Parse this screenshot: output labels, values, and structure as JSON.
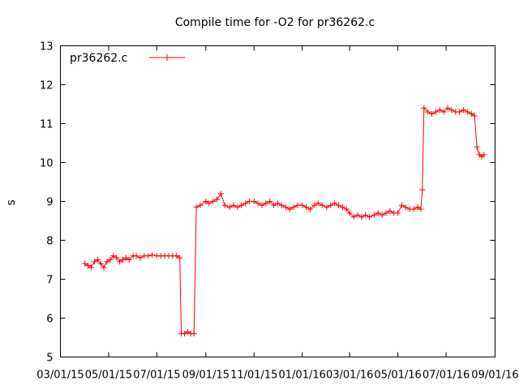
{
  "chart_data": {
    "type": "line",
    "title": "Compile time for -O2 for pr36262.c",
    "xlabel": "",
    "ylabel": "s",
    "ylim": [
      5,
      13
    ],
    "yticks": [
      5,
      6,
      7,
      8,
      9,
      10,
      11,
      12,
      13
    ],
    "xlim": [
      "2015-03-01",
      "2016-09-01"
    ],
    "xticks": [
      "03/01/15",
      "05/01/15",
      "07/01/15",
      "09/01/15",
      "11/01/15",
      "01/01/16",
      "03/01/16",
      "05/01/16",
      "07/01/16",
      "09/01/16"
    ],
    "grid": false,
    "legend_position": "top-left",
    "color": "#ff0000",
    "series": [
      {
        "name": "pr36262.c",
        "x": [
          "2015-04-01",
          "2015-04-05",
          "2015-04-09",
          "2015-04-13",
          "2015-04-17",
          "2015-04-21",
          "2015-04-25",
          "2015-04-29",
          "2015-05-03",
          "2015-05-07",
          "2015-05-11",
          "2015-05-15",
          "2015-05-19",
          "2015-05-23",
          "2015-05-27",
          "2015-06-01",
          "2015-06-05",
          "2015-06-10",
          "2015-06-15",
          "2015-06-20",
          "2015-06-25",
          "2015-07-01",
          "2015-07-06",
          "2015-07-11",
          "2015-07-16",
          "2015-07-21",
          "2015-07-26",
          "2015-07-30",
          "2015-08-01",
          "2015-08-05",
          "2015-08-09",
          "2015-08-13",
          "2015-08-17",
          "2015-08-20",
          "2015-08-25",
          "2015-09-01",
          "2015-09-05",
          "2015-09-10",
          "2015-09-15",
          "2015-09-20",
          "2015-09-25",
          "2015-10-01",
          "2015-10-06",
          "2015-10-11",
          "2015-10-16",
          "2015-10-21",
          "2015-10-26",
          "2015-11-01",
          "2015-11-06",
          "2015-11-11",
          "2015-11-16",
          "2015-11-21",
          "2015-11-26",
          "2015-12-01",
          "2015-12-06",
          "2015-12-11",
          "2015-12-16",
          "2015-12-21",
          "2015-12-26",
          "2016-01-01",
          "2016-01-06",
          "2016-01-11",
          "2016-01-16",
          "2016-01-21",
          "2016-01-26",
          "2016-02-01",
          "2016-02-06",
          "2016-02-11",
          "2016-02-16",
          "2016-02-21",
          "2016-02-26",
          "2016-03-01",
          "2016-03-06",
          "2016-03-11",
          "2016-03-16",
          "2016-03-21",
          "2016-03-26",
          "2016-04-01",
          "2016-04-06",
          "2016-04-11",
          "2016-04-16",
          "2016-04-21",
          "2016-04-26",
          "2016-05-01",
          "2016-05-06",
          "2016-05-11",
          "2016-05-16",
          "2016-05-21",
          "2016-05-26",
          "2016-05-30",
          "2016-06-01",
          "2016-06-03",
          "2016-06-08",
          "2016-06-13",
          "2016-06-18",
          "2016-06-23",
          "2016-06-28",
          "2016-07-03",
          "2016-07-08",
          "2016-07-13",
          "2016-07-18",
          "2016-07-23",
          "2016-07-28",
          "2016-08-02",
          "2016-08-06",
          "2016-08-09",
          "2016-08-12",
          "2016-08-15",
          "2016-08-18"
        ],
        "y": [
          7.4,
          7.35,
          7.3,
          7.45,
          7.5,
          7.4,
          7.3,
          7.45,
          7.5,
          7.6,
          7.55,
          7.45,
          7.5,
          7.55,
          7.5,
          7.6,
          7.6,
          7.55,
          7.6,
          7.6,
          7.62,
          7.6,
          7.6,
          7.6,
          7.6,
          7.6,
          7.6,
          7.55,
          5.6,
          5.6,
          5.65,
          5.6,
          5.6,
          8.85,
          8.9,
          9.0,
          8.95,
          9.0,
          9.05,
          9.2,
          8.9,
          8.85,
          8.9,
          8.85,
          8.9,
          8.95,
          9.0,
          9.0,
          8.95,
          8.9,
          8.95,
          9.0,
          8.9,
          8.95,
          8.9,
          8.85,
          8.8,
          8.85,
          8.9,
          8.9,
          8.85,
          8.8,
          8.9,
          8.95,
          8.9,
          8.85,
          8.9,
          8.95,
          8.9,
          8.85,
          8.8,
          8.7,
          8.6,
          8.65,
          8.6,
          8.65,
          8.6,
          8.65,
          8.7,
          8.65,
          8.7,
          8.75,
          8.7,
          8.7,
          8.9,
          8.85,
          8.8,
          8.8,
          8.85,
          8.8,
          9.3,
          11.4,
          11.3,
          11.25,
          11.3,
          11.35,
          11.3,
          11.4,
          11.35,
          11.3,
          11.3,
          11.35,
          11.3,
          11.25,
          11.2,
          10.4,
          10.2,
          10.15,
          10.2
        ]
      }
    ]
  }
}
